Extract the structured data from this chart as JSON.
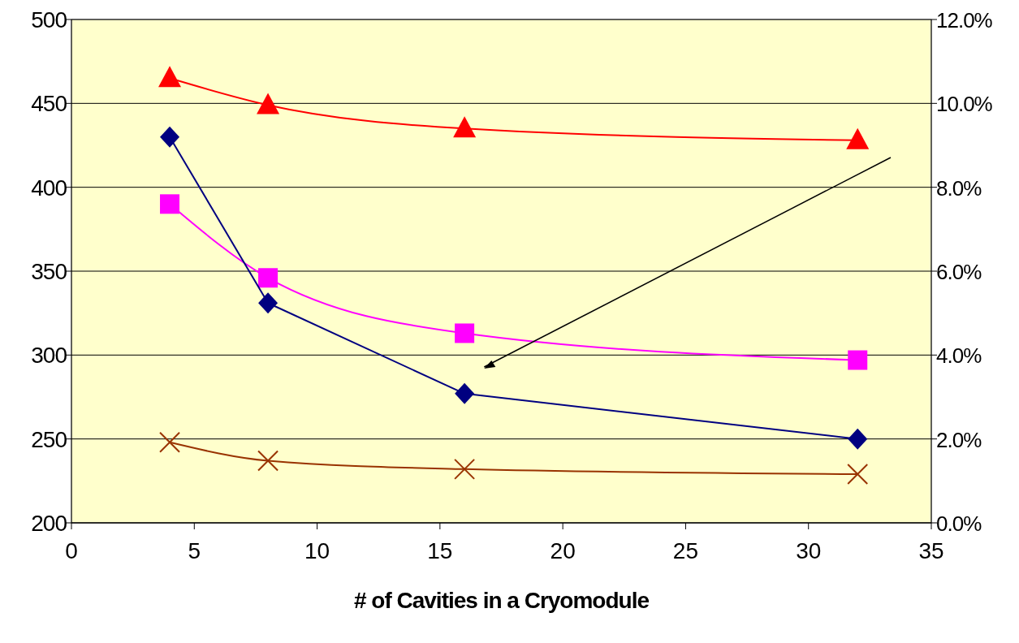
{
  "chart_data": {
    "type": "line",
    "xlabel": "# of Cavities in a Cryomodule",
    "xlim": [
      0,
      35
    ],
    "xticks": [
      0,
      5,
      10,
      15,
      20,
      25,
      30,
      35
    ],
    "ylim": [
      200,
      500
    ],
    "yticks": [
      200,
      250,
      300,
      350,
      400,
      450,
      500
    ],
    "y2lim": [
      0,
      12
    ],
    "y2ticks": [
      {
        "value": 0,
        "label": "0.0%"
      },
      {
        "value": 2,
        "label": "2.0%"
      },
      {
        "value": 4,
        "label": "4.0%"
      },
      {
        "value": 6,
        "label": "6.0%"
      },
      {
        "value": 8,
        "label": "8.0%"
      },
      {
        "value": 10,
        "label": "10.0%"
      },
      {
        "value": 12,
        "label": "12.0%"
      }
    ],
    "grid": "y",
    "series": [
      {
        "color": "#ff0000",
        "marker": "triangle",
        "x": [
          4,
          8,
          16,
          32
        ],
        "values": [
          465,
          449,
          435,
          428
        ]
      },
      {
        "color": "#ff00ff",
        "marker": "square",
        "x": [
          4,
          8,
          16,
          32
        ],
        "values": [
          390,
          346,
          313,
          297
        ]
      },
      {
        "color": "#000080",
        "marker": "diamond",
        "axis": "y2",
        "x": [
          4,
          8,
          16,
          32
        ],
        "values": [
          9.2,
          5.24,
          3.08,
          2.0
        ]
      },
      {
        "color": "#993300",
        "marker": "cross",
        "x": [
          4,
          8,
          16,
          32
        ],
        "values": [
          248,
          237,
          232,
          229
        ]
      }
    ]
  }
}
